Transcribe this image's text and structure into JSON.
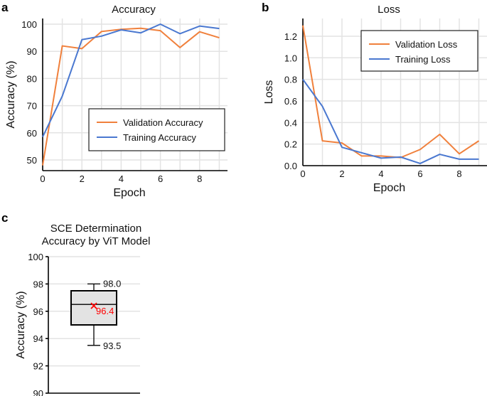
{
  "colors": {
    "validation": "#f0803c",
    "training": "#4a78d0",
    "mean": "#ff0000",
    "box_fill": "#e3e3e3"
  },
  "chart_data": [
    {
      "panel": "a",
      "type": "line",
      "title": "Accuracy",
      "xlabel": "Epoch",
      "ylabel": "Accuracy (%)",
      "x": [
        0,
        1,
        2,
        3,
        4,
        5,
        6,
        7,
        8,
        9
      ],
      "xticks": [
        0,
        2,
        4,
        6,
        8
      ],
      "yticks": [
        50,
        60,
        70,
        80,
        90,
        100
      ],
      "xlim": [
        0,
        9.3
      ],
      "ylim": [
        47,
        100.5
      ],
      "grid": true,
      "legend_position": "center-right",
      "series": [
        {
          "name": "Validation Accuracy",
          "color": "#f0803c",
          "values": [
            48,
            92,
            91,
            97.3,
            98.1,
            98.5,
            97.6,
            91.4,
            97.2,
            95
          ]
        },
        {
          "name": "Training Accuracy",
          "color": "#4a78d0",
          "values": [
            58.5,
            73.5,
            94.3,
            95.6,
            97.9,
            96.8,
            100,
            96.5,
            99.3,
            98.4
          ]
        }
      ]
    },
    {
      "panel": "b",
      "type": "line",
      "title": "Loss",
      "xlabel": "Epoch",
      "ylabel": "Loss",
      "x": [
        0,
        1,
        2,
        3,
        4,
        5,
        6,
        7,
        8,
        9
      ],
      "xticks": [
        0,
        2,
        4,
        6,
        8
      ],
      "yticks": [
        "0.0",
        "0.2",
        "0.4",
        "0.6",
        "0.8",
        "1.0",
        "1.2"
      ],
      "xlim": [
        0,
        9.3
      ],
      "ylim": [
        0,
        1.35
      ],
      "grid": true,
      "legend_position": "top-right",
      "series": [
        {
          "name": "Validation Loss",
          "color": "#f0803c",
          "values": [
            1.3,
            0.23,
            0.21,
            0.09,
            0.09,
            0.075,
            0.15,
            0.29,
            0.11,
            0.23
          ]
        },
        {
          "name": "Training Loss",
          "color": "#4a78d0",
          "values": [
            0.8,
            0.55,
            0.17,
            0.12,
            0.07,
            0.08,
            0.02,
            0.105,
            0.06,
            0.06
          ]
        }
      ]
    },
    {
      "panel": "c",
      "type": "box",
      "title": [
        "SCE Determination",
        "Accuracy by ViT Model"
      ],
      "ylabel": "Accuracy (%)",
      "yticks": [
        90,
        92,
        94,
        96,
        98,
        100
      ],
      "ylim": [
        90,
        100
      ],
      "grid": true,
      "box": {
        "whisker_low": 93.5,
        "q1": 95.0,
        "median": 96.5,
        "q3": 97.5,
        "whisker_high": 98.0,
        "mean": 96.4
      },
      "labels": {
        "whisker_high": "98.0",
        "whisker_low": "93.5",
        "mean": "96.4"
      }
    }
  ]
}
